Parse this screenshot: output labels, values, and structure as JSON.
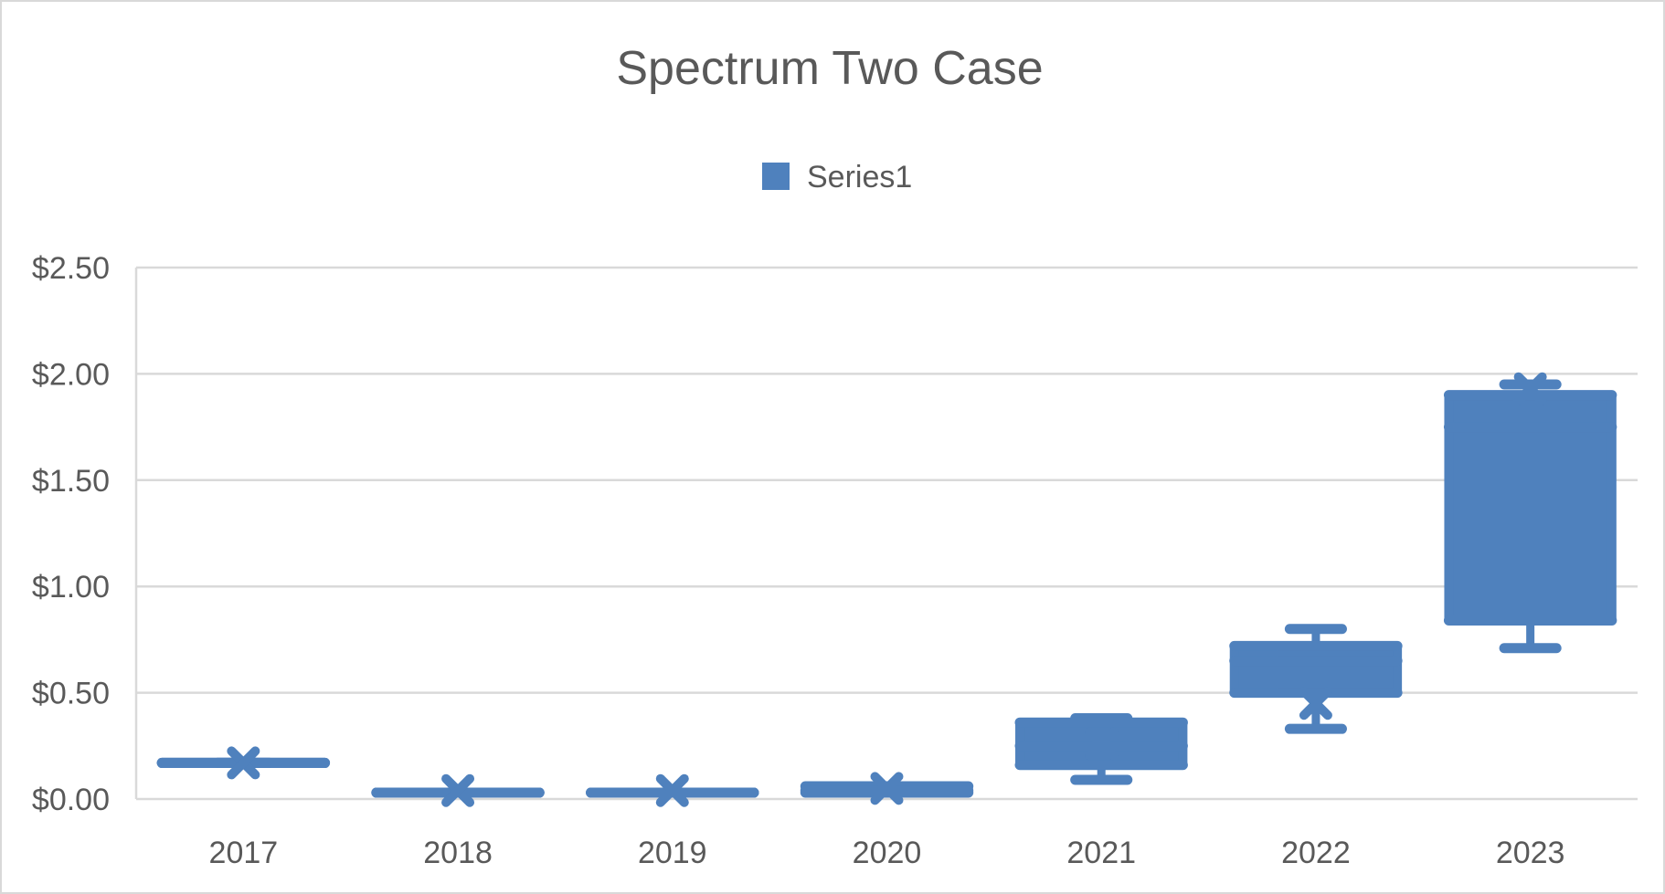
{
  "chart_data": {
    "type": "box",
    "title": "Spectrum Two Case",
    "xlabel": "",
    "ylabel": "",
    "ylim": [
      0,
      2.5
    ],
    "y_ticks": [
      "$0.00",
      "$0.50",
      "$1.00",
      "$1.50",
      "$2.00",
      "$2.50"
    ],
    "y_tick_values": [
      0,
      0.5,
      1.0,
      1.5,
      2.0,
      2.5
    ],
    "grid": true,
    "legend_position": "top",
    "categories": [
      "2017",
      "2018",
      "2019",
      "2020",
      "2021",
      "2022",
      "2023"
    ],
    "series": [
      {
        "name": "Series1",
        "color": "#4f81bd",
        "boxes": [
          {
            "min": 0.17,
            "q1": 0.17,
            "median": 0.17,
            "q3": 0.17,
            "max": 0.17,
            "mean": 0.17
          },
          {
            "min": 0.03,
            "q1": 0.03,
            "median": 0.03,
            "q3": 0.03,
            "max": 0.03,
            "mean": 0.04
          },
          {
            "min": 0.03,
            "q1": 0.03,
            "median": 0.03,
            "q3": 0.03,
            "max": 0.03,
            "mean": 0.04
          },
          {
            "min": 0.03,
            "q1": 0.03,
            "median": 0.04,
            "q3": 0.06,
            "max": 0.06,
            "mean": 0.05
          },
          {
            "min": 0.09,
            "q1": 0.16,
            "median": 0.25,
            "q3": 0.36,
            "max": 0.38,
            "mean": 0.26
          },
          {
            "min": 0.33,
            "q1": 0.5,
            "median": 0.65,
            "q3": 0.72,
            "max": 0.8,
            "mean": 0.45
          },
          {
            "min": 0.71,
            "q1": 0.84,
            "median": 1.75,
            "q3": 1.9,
            "max": 1.95,
            "mean": 1.93
          }
        ]
      }
    ]
  }
}
